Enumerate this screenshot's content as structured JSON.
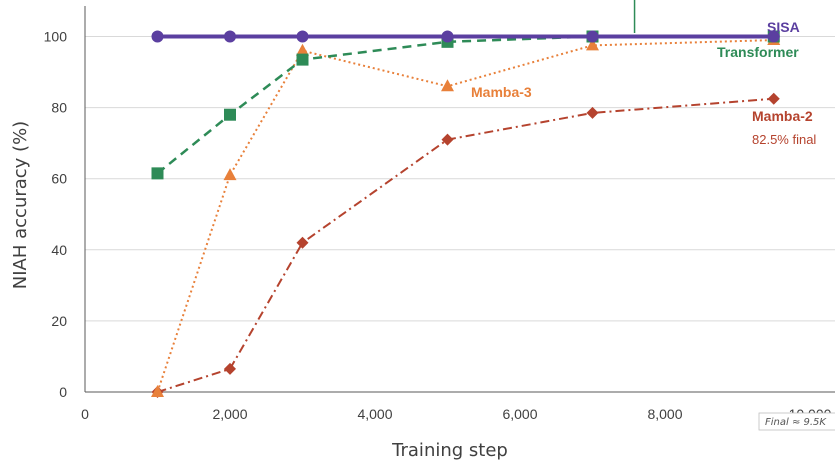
{
  "chart_data": {
    "type": "line",
    "title": "",
    "xlabel": "Training step",
    "ylabel": "NIAH accuracy (%)",
    "xlim": [
      0,
      10000
    ],
    "ylim": [
      0,
      105
    ],
    "x_ticks": [
      0,
      2000,
      4000,
      6000,
      8000,
      10000
    ],
    "x_tick_labels": [
      "0",
      "2,000",
      "4,000",
      "6,000",
      "8,000",
      "10,000"
    ],
    "y_ticks": [
      0,
      20,
      40,
      60,
      80,
      100
    ],
    "y_tick_labels": [
      "0",
      "20",
      "40",
      "60",
      "80",
      "100"
    ],
    "grid": "horizontal",
    "series": [
      {
        "name": "SISA",
        "color": "#5b3fa0",
        "marker": "circle",
        "line_style": "solid",
        "x": [
          1000,
          2000,
          3000,
          5000,
          7000,
          9500
        ],
        "y": [
          100,
          100,
          100,
          100,
          100,
          100
        ]
      },
      {
        "name": "Transformer",
        "color": "#2e8b57",
        "marker": "square",
        "line_style": "dashed",
        "x": [
          1000,
          2000,
          3000,
          5000,
          7000,
          9500
        ],
        "y": [
          61.5,
          78,
          93.5,
          98.5,
          100,
          100
        ]
      },
      {
        "name": "Mamba-3",
        "color": "#e8803a",
        "marker": "triangle",
        "line_style": "dotted",
        "x": [
          1000,
          2000,
          3000,
          5000,
          7000,
          9500
        ],
        "y": [
          0,
          61,
          96,
          86,
          97.5,
          99
        ]
      },
      {
        "name": "Mamba-2",
        "color": "#b5432e",
        "marker": "diamond",
        "line_style": "dashdot",
        "x": [
          1000,
          2000,
          3000,
          5000,
          7000,
          9500
        ],
        "y": [
          0,
          6.5,
          42,
          71,
          78.5,
          82.5
        ]
      }
    ],
    "annotations": [
      {
        "text": "82.5% final",
        "color": "#b5432e"
      },
      {
        "text": "Final ≈ 9.5K"
      }
    ],
    "marker_line": {
      "x": 7580,
      "color": "#2e8b57"
    }
  }
}
